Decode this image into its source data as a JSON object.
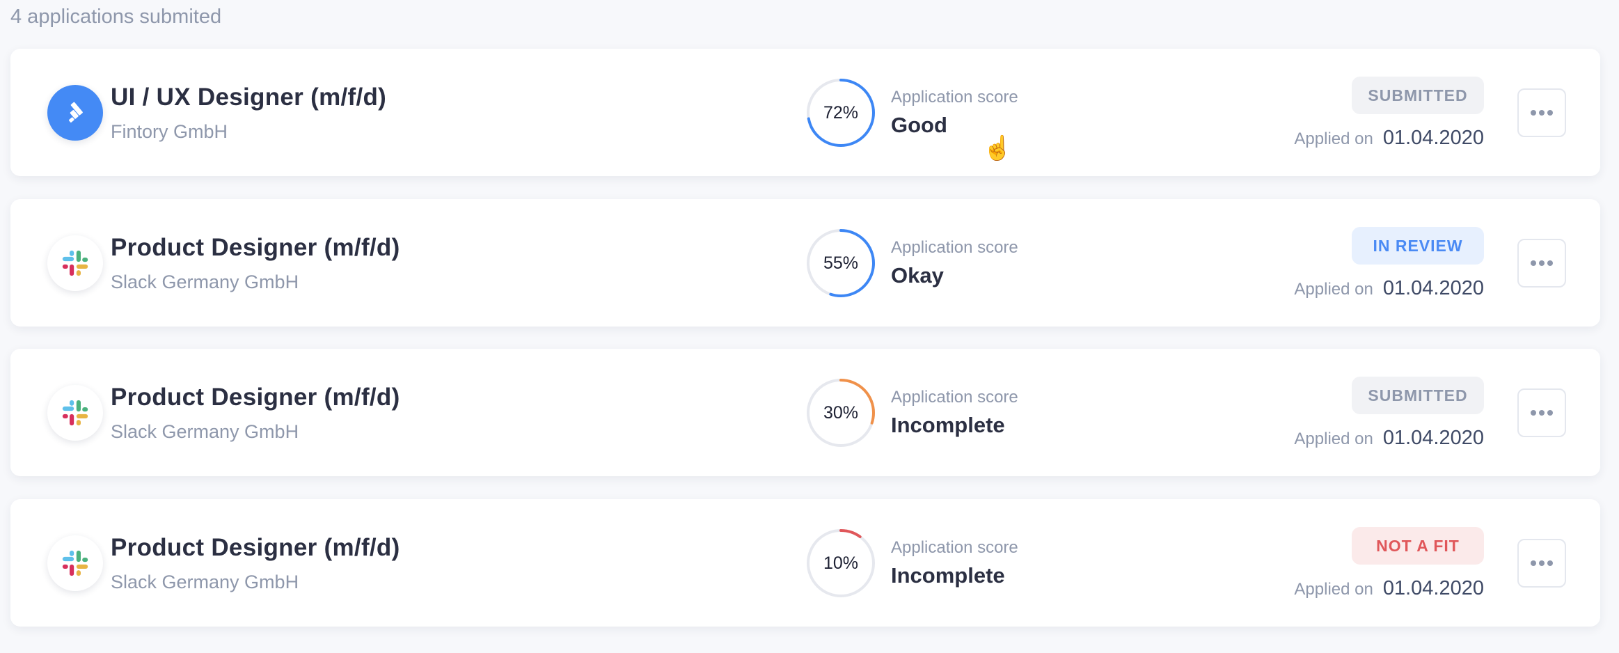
{
  "header": {
    "count_text": "4 applications submited"
  },
  "score_label": "Application score",
  "applied_label": "Applied on",
  "colors": {
    "blue": "#3d87f5",
    "orange": "#f0914a",
    "red": "#e0575a",
    "track": "#e6e8ee"
  },
  "applications": [
    {
      "title": "UI / UX Designer (m/f/d)",
      "company": "Fintory GmbH",
      "logo": "fintory-logo",
      "score": 72,
      "score_text": "72%",
      "score_value": "Good",
      "ring_color": "#3d87f5",
      "status": "SUBMITTED",
      "status_bg": "#f1f2f5",
      "status_fg": "#8e97ab",
      "date": "01.04.2020"
    },
    {
      "title": "Product Designer (m/f/d)",
      "company": "Slack Germany GmbH",
      "logo": "slack-logo",
      "score": 55,
      "score_text": "55%",
      "score_value": "Okay",
      "ring_color": "#3d87f5",
      "status": "IN REVIEW",
      "status_bg": "#e7f0fe",
      "status_fg": "#4a8af4",
      "date": "01.04.2020"
    },
    {
      "title": "Product Designer (m/f/d)",
      "company": "Slack Germany GmbH",
      "logo": "slack-logo",
      "score": 30,
      "score_text": "30%",
      "score_value": "Incomplete",
      "ring_color": "#f0914a",
      "status": "SUBMITTED",
      "status_bg": "#f1f2f5",
      "status_fg": "#8e97ab",
      "date": "01.04.2020"
    },
    {
      "title": "Product Designer (m/f/d)",
      "company": "Slack Germany GmbH",
      "logo": "slack-logo",
      "score": 10,
      "score_text": "10%",
      "score_value": "Incomplete",
      "ring_color": "#e0575a",
      "status": "NOT A FIT",
      "status_bg": "#fbeaea",
      "status_fg": "#e0575a",
      "date": "01.04.2020"
    }
  ]
}
